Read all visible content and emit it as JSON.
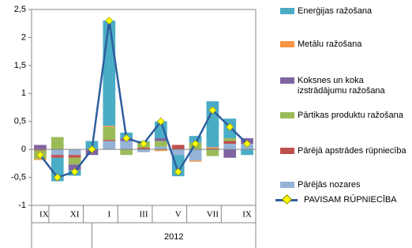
{
  "chart_data": {
    "type": "bar",
    "categories": [
      "IX",
      null,
      "XI",
      null,
      "I",
      null,
      "III",
      null,
      "V",
      null,
      "VII",
      null,
      "IX"
    ],
    "year_label": "2012",
    "ylim": [
      -1,
      2.5
    ],
    "yticks": [
      -1,
      {
        "value": -0.5,
        "label": "-0,5"
      },
      0,
      {
        "value": 0.5,
        "label": "0,5"
      },
      1,
      {
        "value": 1.5,
        "label": "1,5"
      },
      2,
      {
        "value": 2.5,
        "label": "2,5"
      }
    ],
    "series": [
      {
        "name": "Enerģijas ražošana",
        "color": "#4bacc6",
        "values": [
          0,
          -0.42,
          -0.1,
          0.15,
          1.88,
          0.1,
          0.02,
          0.3,
          -0.38,
          0.12,
          0.82,
          0.35,
          -0.1
        ]
      },
      {
        "name": "Metālu ražošana",
        "color": "#f79646",
        "values": [
          -0.02,
          0,
          0,
          0,
          0.02,
          0,
          0,
          -0.03,
          0,
          -0.02,
          0.02,
          0,
          0
        ]
      },
      {
        "name": "Koksnes un koka izstrādājumu ražošana",
        "color": "#8064a2",
        "values": [
          0.08,
          0,
          -0.1,
          -0.1,
          0,
          0.05,
          0,
          0.05,
          0,
          0,
          0,
          -0.15,
          0.1
        ]
      },
      {
        "name": "Pārtikas produktu ražošana",
        "color": "#9bbb59",
        "values": [
          -0.15,
          0.22,
          -0.12,
          0,
          0.23,
          -0.1,
          0.1,
          0.1,
          0,
          0.12,
          -0.12,
          0.05,
          0
        ]
      },
      {
        "name": "Pārējā apstrādes rūpniecība",
        "color": "#c0504d",
        "values": [
          -0.02,
          -0.05,
          -0.05,
          0,
          0.02,
          0,
          0.03,
          0,
          0.08,
          0,
          0.02,
          0.05,
          0
        ]
      },
      {
        "name": "Pārējās nozares",
        "color": "#95b3d7",
        "values": [
          0,
          -0.1,
          -0.1,
          0,
          0.15,
          0.15,
          -0.05,
          0.05,
          -0.1,
          -0.2,
          0,
          0.1,
          0.1
        ]
      },
      {
        "name": "PAVISAM RŪPNIECĪBA",
        "type": "line",
        "color": "#2e5f9e",
        "marker_color": "#ffff00",
        "values": [
          -0.1,
          -0.5,
          -0.4,
          0,
          2.3,
          0.2,
          0.1,
          0.5,
          -0.4,
          0.1,
          0.7,
          0.4,
          0.1
        ]
      }
    ]
  }
}
